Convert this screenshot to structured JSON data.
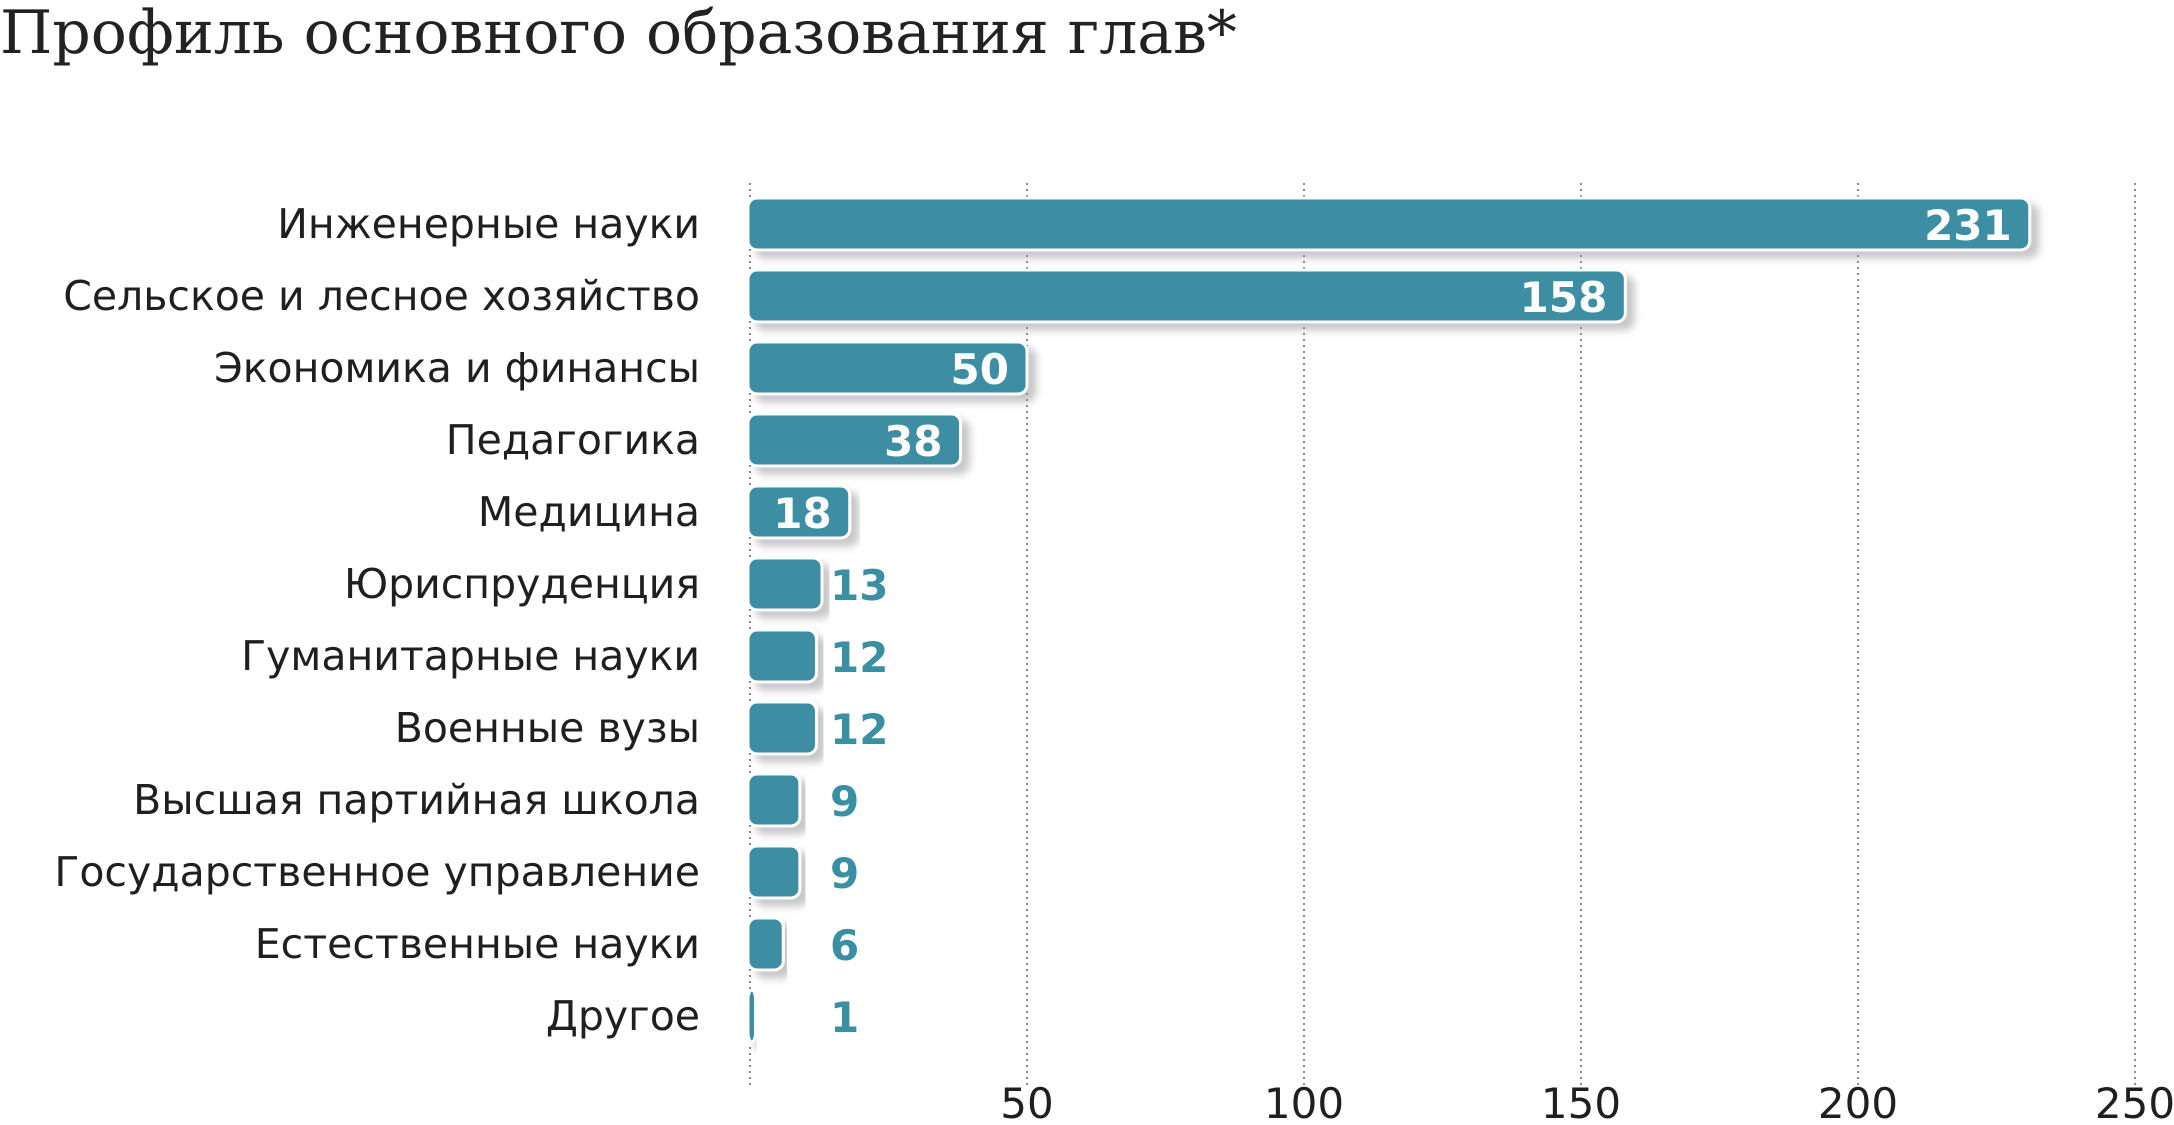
{
  "colors": {
    "bar": "#3e8ea2",
    "bar_outline": "#ffffff",
    "shadow": "#c9c9c9",
    "grid": "#6e6e6e",
    "outside_label": "#3a8fa3",
    "inside_label": "#ffffff"
  },
  "chart_data": {
    "type": "bar",
    "orientation": "horizontal",
    "title": "Профиль основного образования глав*",
    "categories": [
      "Инженерные науки",
      "Сельское и лесное хозяйство",
      "Экономика и финансы",
      "Педагогика",
      "Медицина",
      "Юриспруденция",
      "Гуманитарные науки",
      "Военные вузы",
      "Высшая партийная школа",
      "Государственное управление",
      "Естественные науки",
      "Другое"
    ],
    "values": [
      231,
      158,
      50,
      38,
      18,
      13,
      12,
      12,
      9,
      9,
      6,
      1
    ],
    "xlim": [
      0,
      250
    ],
    "xticks": [
      50,
      100,
      150,
      200,
      250
    ],
    "grid": true,
    "grid_style": "dotted-vertical"
  }
}
